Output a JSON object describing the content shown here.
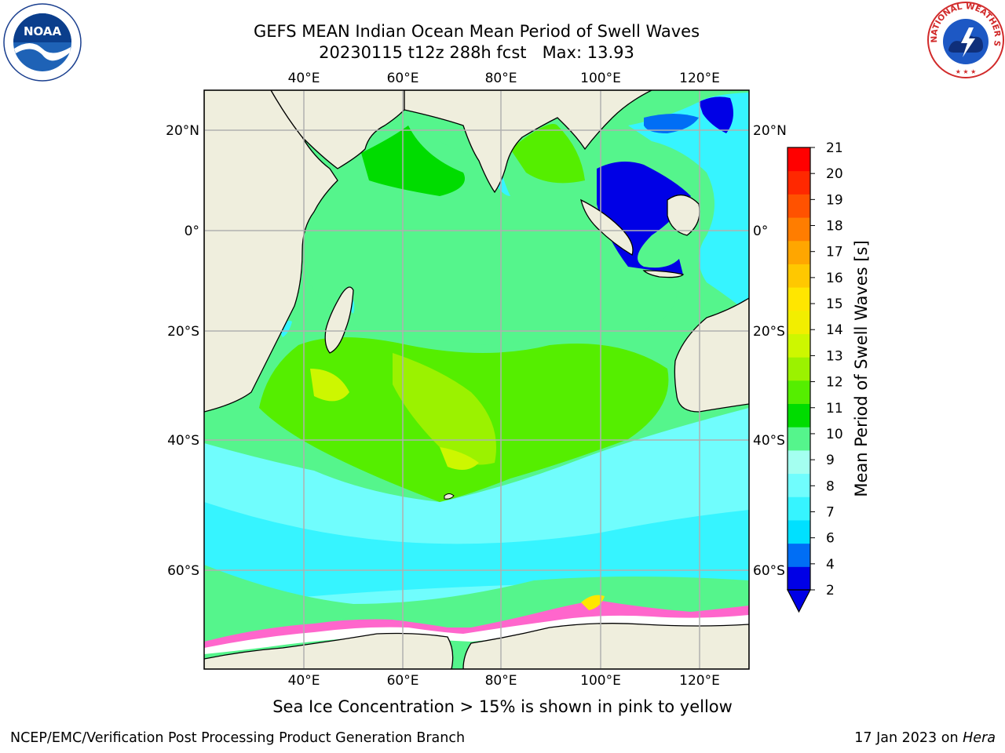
{
  "header": {
    "title_line1": "GEFS MEAN Indian Ocean Mean Period of Swell Waves",
    "date_cycle": "20230115 t12z 288h fcst",
    "max_label": "Max: 13.93"
  },
  "map": {
    "lon_labels": [
      "40°E",
      "60°E",
      "80°E",
      "100°E",
      "120°E"
    ],
    "lat_labels": [
      "20°N",
      "0°",
      "20°S",
      "40°S",
      "60°S"
    ],
    "colors": {
      "land": "#efeedd",
      "grid": "#b0b0b0"
    }
  },
  "colorbar": {
    "title": "Mean Period of Swell Waves [s]",
    "ticks": [
      "2",
      "4",
      "6",
      "7",
      "8",
      "9",
      "10",
      "11",
      "12",
      "13",
      "14",
      "15",
      "16",
      "17",
      "18",
      "19",
      "20",
      "21"
    ],
    "colors": [
      "#0000e6",
      "#006ef5",
      "#00e0ff",
      "#36f4ff",
      "#70fdfd",
      "#a4fff0",
      "#55f58c",
      "#00dc00",
      "#55ee00",
      "#9bf200",
      "#cdf700",
      "#f2ee00",
      "#ffe600",
      "#ffc800",
      "#ffa600",
      "#ff7d00",
      "#ff5200",
      "#ff2800",
      "#ff0000"
    ]
  },
  "caption": "Sea Ice Concentration > 15% is shown in pink to yellow",
  "footer": {
    "left": "NCEP/EMC/Verification Post Processing Product Generation Branch",
    "date": "17 Jan 2023 on",
    "machine": "Hera"
  },
  "logos": {
    "noaa_text": "NOAA",
    "nws_text": "NATIONAL WEATHER SERVICE"
  }
}
